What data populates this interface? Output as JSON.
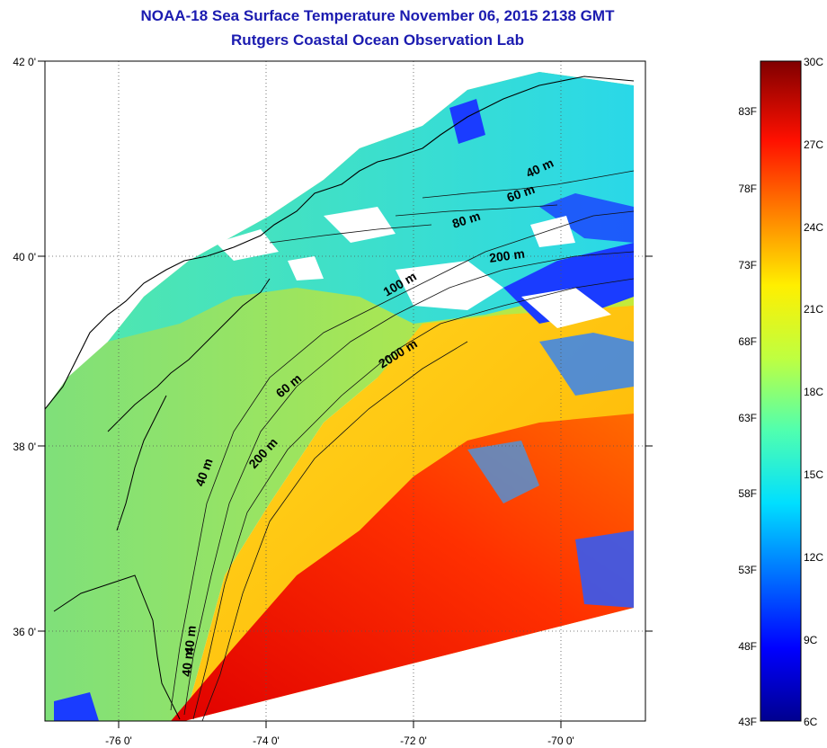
{
  "title": "NOAA-18 Sea Surface Temperature November 06, 2015 2138 GMT",
  "subtitle": "Rutgers Coastal Ocean Observation Lab",
  "map": {
    "lat_labels": [
      "42 0'",
      "40 0'",
      "38 0'",
      "36 0'"
    ],
    "lon_labels": [
      "-76 0'",
      "-74 0'",
      "-72 0'",
      "-70 0'"
    ],
    "depth_labels": [
      "40 m",
      "60 m",
      "80 m",
      "200 m",
      "100 m",
      "2000 m",
      "60 m",
      "200 m",
      "40 m",
      "40 m",
      "40 m"
    ],
    "colors": {
      "land": "#ffffff",
      "coast": "#000000",
      "grid": "#555555",
      "cloud": "#ffffff"
    }
  },
  "colorbar": {
    "f_labels": [
      "83F",
      "78F",
      "73F",
      "68F",
      "63F",
      "58F",
      "53F",
      "48F",
      "43F"
    ],
    "c_labels": [
      "30C",
      "27C",
      "24C",
      "21C",
      "18C",
      "15C",
      "12C",
      "9C",
      "6C"
    ],
    "colors": [
      "#00008f",
      "#0000ff",
      "#0070ff",
      "#00dfff",
      "#50ffaf",
      "#bfff40",
      "#ffef00",
      "#ff8000",
      "#ff1000",
      "#800000"
    ]
  }
}
